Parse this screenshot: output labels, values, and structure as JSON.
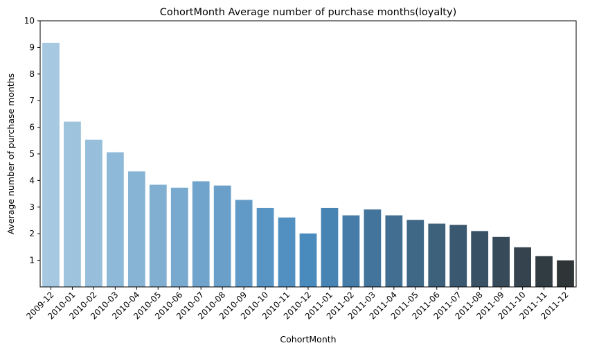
{
  "chart_data": {
    "type": "bar",
    "title": "CohortMonth Average number of purchase months(loyalty)",
    "xlabel": "CohortMonth",
    "ylabel": "Average number of purchase months",
    "categories": [
      "2009-12",
      "2010-01",
      "2010-02",
      "2010-03",
      "2010-04",
      "2010-05",
      "2010-06",
      "2010-07",
      "2010-08",
      "2010-09",
      "2010-10",
      "2010-11",
      "2010-12",
      "2011-01",
      "2011-02",
      "2011-03",
      "2011-04",
      "2011-05",
      "2011-06",
      "2011-07",
      "2011-08",
      "2011-09",
      "2011-10",
      "2011-11",
      "2011-12"
    ],
    "values": [
      9.17,
      6.21,
      5.53,
      5.06,
      4.34,
      3.84,
      3.73,
      3.97,
      3.81,
      3.27,
      2.97,
      2.61,
      2.01,
      2.97,
      2.69,
      2.91,
      2.69,
      2.52,
      2.38,
      2.33,
      2.1,
      1.88,
      1.49,
      1.16,
      1.0
    ],
    "yticks": [
      1,
      2,
      3,
      4,
      5,
      6,
      7,
      8,
      9,
      10
    ],
    "ylim": [
      0,
      10
    ],
    "grid": false,
    "x_tick_rotation_deg": 45,
    "color_start": "#a6c8e0",
    "color_mid": "#4a8bbe",
    "color_end": "#2f3437"
  }
}
